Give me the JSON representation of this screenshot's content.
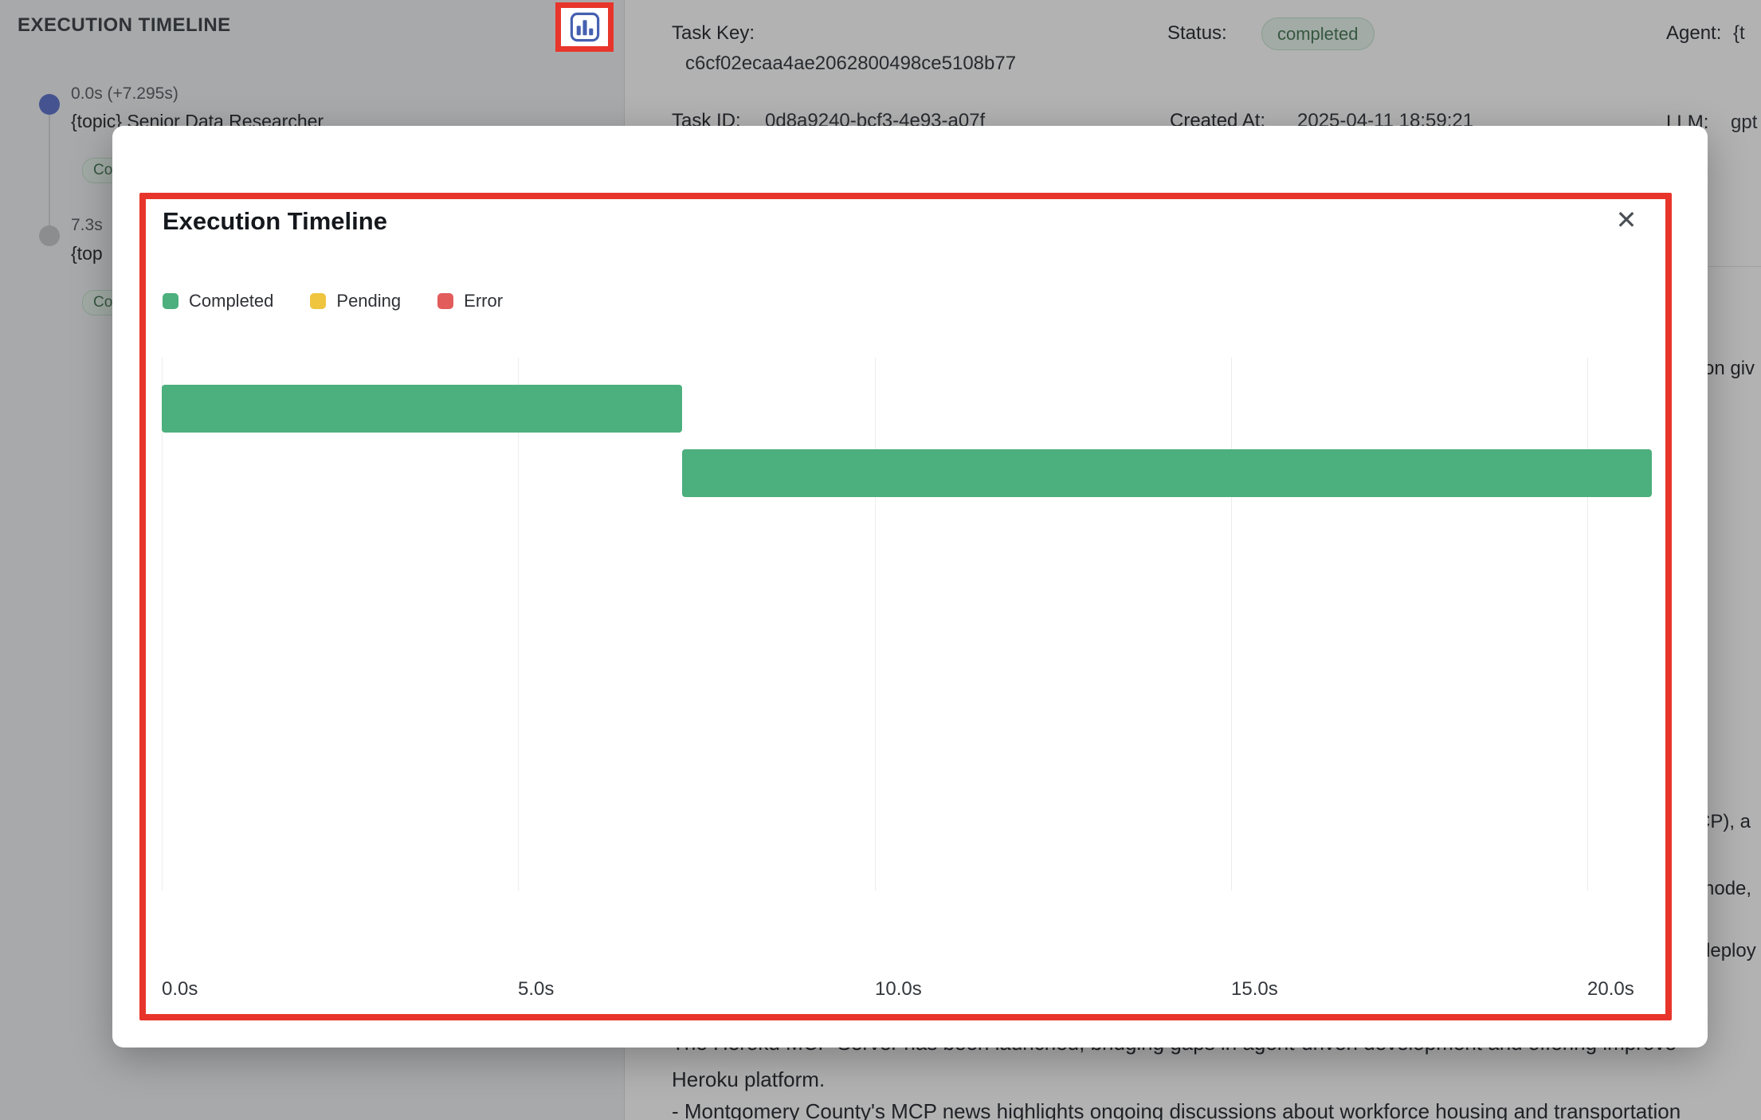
{
  "annotation": {
    "box_color": "#e8352b"
  },
  "colors": {
    "status_completed_text": "#4e7d5c",
    "timeline_active_dot": "#6377cf",
    "timeline_done_dot": "#c8cacd",
    "bar_completed": "#4caf7e",
    "legend_pending": "#efc53f",
    "legend_error": "#e25c5c"
  },
  "sidebar": {
    "title": "EXECUTION TIMELINE",
    "items": [
      {
        "time": "0.0s (+7.295s)",
        "name": "{topic} Senior Data Researcher",
        "badge": "Completed",
        "dot_color": "#6377cf"
      },
      {
        "time": "7.3s",
        "name": "{top",
        "badge": "Completed",
        "dot_color": "#c8cacd"
      }
    ]
  },
  "details": {
    "task_key_label": "Task Key:",
    "task_key_value": "c6cf02ecaa4ae2062800498ce5108b77",
    "status_label": "Status:",
    "status_value": "completed",
    "agent_label": "Agent:",
    "agent_value": "{t",
    "task_id_label": "Task ID:",
    "task_id_value": "0d8a9240-bcf3-4e93-a07f",
    "created_label": "Created At:",
    "created_value": "2025-04-11 18:59:21",
    "llm_label": "LLM:",
    "llm_value": "gpt"
  },
  "fragments": {
    "right1": "on giv",
    "right2": "CP), a",
    "right3": "node,",
    "right4": "deploy"
  },
  "body_text": {
    "line1": "The Heroku MCP Server has been launched, bridging gaps in agent-driven development and offering improve",
    "line2": "Heroku platform.",
    "line3": "- Montgomery County's MCP news highlights ongoing discussions about workforce housing and transportation"
  },
  "modal": {
    "title": "Execution Timeline",
    "close_icon": "✕"
  },
  "chart_data": {
    "type": "bar",
    "variant": "horizontal-gantt",
    "title": "Execution Timeline",
    "legend_position": "top-left",
    "legend": [
      {
        "label": "Completed",
        "color": "#4caf7e"
      },
      {
        "label": "Pending",
        "color": "#efc53f"
      },
      {
        "label": "Error",
        "color": "#e25c5c"
      }
    ],
    "x_ticks": [
      "0.0s",
      "5.0s",
      "10.0s",
      "15.0s",
      "20.0s"
    ],
    "x_tick_values": [
      0,
      5,
      10,
      15,
      20
    ],
    "x_max": 20.9,
    "grid": true,
    "bars": [
      {
        "row": 0,
        "start": 0.0,
        "end": 7.295,
        "status": "Completed",
        "color": "#4caf7e"
      },
      {
        "row": 1,
        "start": 7.295,
        "end": 20.9,
        "status": "Completed",
        "color": "#4caf7e"
      }
    ]
  }
}
